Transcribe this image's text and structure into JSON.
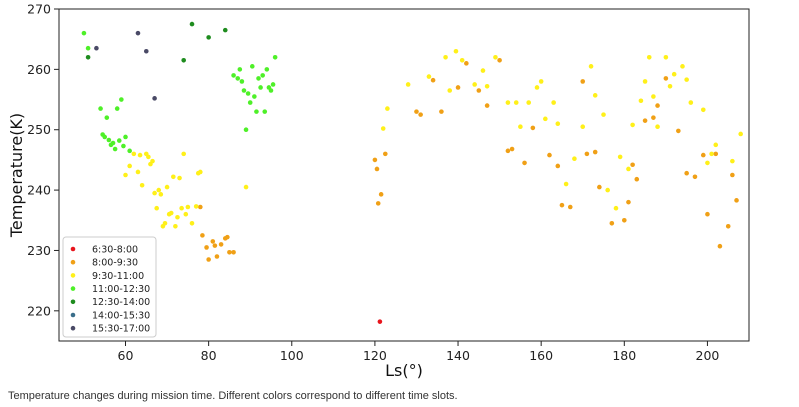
{
  "caption": "Temperature changes during mission time. Different colors correspond to different time slots.",
  "chart_data": {
    "type": "scatter",
    "title": "",
    "xlabel": "Ls(°)",
    "ylabel": "Temperature(K)",
    "xlim": [
      44,
      210
    ],
    "ylim": [
      215,
      270
    ],
    "xticks": [
      60,
      80,
      100,
      120,
      140,
      160,
      180,
      200
    ],
    "yticks": [
      220,
      230,
      240,
      250,
      260,
      270
    ],
    "grid": false,
    "legend_position": "lower-left",
    "series": [
      {
        "name": "6:30-8:00",
        "color": "#e8141c",
        "points": [
          [
            121.2,
            218.2
          ]
        ]
      },
      {
        "name": "8:00-9:30",
        "color": "#f0a016",
        "points": [
          [
            78,
            237.2
          ],
          [
            78.5,
            232.5
          ],
          [
            79.5,
            230.5
          ],
          [
            80,
            228.5
          ],
          [
            81,
            231.5
          ],
          [
            81.5,
            230.8
          ],
          [
            82,
            229
          ],
          [
            83,
            231
          ],
          [
            84,
            232
          ],
          [
            84.5,
            232.2
          ],
          [
            85,
            229.7
          ],
          [
            86,
            229.7
          ],
          [
            120,
            245
          ],
          [
            120.5,
            243.5
          ],
          [
            120.8,
            237.8
          ],
          [
            121.5,
            239.3
          ],
          [
            122.5,
            246
          ],
          [
            130,
            253
          ],
          [
            131,
            252.5
          ],
          [
            134,
            258.2
          ],
          [
            136,
            253
          ],
          [
            140,
            257
          ],
          [
            142,
            261
          ],
          [
            145,
            256.5
          ],
          [
            147,
            254
          ],
          [
            150,
            261.5
          ],
          [
            152,
            246.5
          ],
          [
            153,
            246.8
          ],
          [
            156,
            244.5
          ],
          [
            158,
            250.3
          ],
          [
            162,
            245.8
          ],
          [
            164,
            244
          ],
          [
            165,
            237.5
          ],
          [
            167,
            237.2
          ],
          [
            170,
            258
          ],
          [
            171,
            246
          ],
          [
            173,
            246.3
          ],
          [
            174,
            240.5
          ],
          [
            177,
            234.5
          ],
          [
            180,
            235
          ],
          [
            181,
            238
          ],
          [
            182,
            244.2
          ],
          [
            183,
            241.8
          ],
          [
            185,
            251.5
          ],
          [
            187,
            252
          ],
          [
            188,
            254
          ],
          [
            190,
            258.5
          ],
          [
            193,
            249.8
          ],
          [
            195,
            242.8
          ],
          [
            197,
            242.2
          ],
          [
            199,
            245.8
          ],
          [
            200,
            236
          ],
          [
            202,
            246
          ],
          [
            203,
            230.7
          ],
          [
            205,
            234
          ],
          [
            206,
            242.5
          ],
          [
            207,
            238.3
          ]
        ]
      },
      {
        "name": "9:30-11:00",
        "color": "#fff019",
        "points": [
          [
            60,
            242.5
          ],
          [
            61,
            244
          ],
          [
            62,
            246
          ],
          [
            63,
            243
          ],
          [
            63.5,
            245.8
          ],
          [
            64,
            240.8
          ],
          [
            65,
            246
          ],
          [
            65.5,
            245.5
          ],
          [
            66,
            244.3
          ],
          [
            66.5,
            244.8
          ],
          [
            67,
            239.5
          ],
          [
            67.5,
            237
          ],
          [
            68,
            240
          ],
          [
            68.5,
            239.3
          ],
          [
            69,
            234
          ],
          [
            69.5,
            234.5
          ],
          [
            70,
            240.5
          ],
          [
            70.5,
            236
          ],
          [
            71,
            236.2
          ],
          [
            71.5,
            242.2
          ],
          [
            72,
            234
          ],
          [
            72.5,
            235.5
          ],
          [
            73,
            242
          ],
          [
            73.5,
            237
          ],
          [
            74,
            246
          ],
          [
            74.5,
            236
          ],
          [
            75,
            237.2
          ],
          [
            76,
            234.5
          ],
          [
            77,
            237.3
          ],
          [
            77.5,
            242.8
          ],
          [
            78,
            243
          ],
          [
            89,
            240.5
          ],
          [
            122,
            250.2
          ],
          [
            123,
            253.5
          ],
          [
            128,
            257.5
          ],
          [
            133,
            258.8
          ],
          [
            137,
            262
          ],
          [
            138,
            256.5
          ],
          [
            139.5,
            263
          ],
          [
            141,
            261.5
          ],
          [
            144,
            257.5
          ],
          [
            146,
            259.8
          ],
          [
            147,
            257.2
          ],
          [
            149,
            262
          ],
          [
            152,
            254.5
          ],
          [
            154,
            254.5
          ],
          [
            155,
            250.5
          ],
          [
            157,
            254.5
          ],
          [
            159,
            257
          ],
          [
            160,
            258
          ],
          [
            161,
            251.8
          ],
          [
            163,
            254.5
          ],
          [
            164,
            251
          ],
          [
            166,
            241
          ],
          [
            168,
            245.2
          ],
          [
            170,
            250.5
          ],
          [
            172,
            260.5
          ],
          [
            173,
            255.7
          ],
          [
            175,
            252.5
          ],
          [
            176,
            240
          ],
          [
            178,
            237
          ],
          [
            179,
            245.5
          ],
          [
            181,
            243.5
          ],
          [
            182,
            250.8
          ],
          [
            184,
            254.8
          ],
          [
            185,
            258
          ],
          [
            186,
            262
          ],
          [
            187,
            255.5
          ],
          [
            188,
            250.5
          ],
          [
            190,
            262
          ],
          [
            191,
            257.2
          ],
          [
            192,
            259.2
          ],
          [
            194,
            260.5
          ],
          [
            195,
            258.3
          ],
          [
            196,
            254.5
          ],
          [
            199,
            253.3
          ],
          [
            200,
            244.5
          ],
          [
            201,
            246
          ],
          [
            202,
            247.5
          ],
          [
            206,
            244.8
          ],
          [
            208,
            249.3
          ]
        ]
      },
      {
        "name": "11:00-12:30",
        "color": "#4ef028",
        "points": [
          [
            50,
            266
          ],
          [
            51,
            263.5
          ],
          [
            54,
            253.5
          ],
          [
            54.5,
            249.2
          ],
          [
            55,
            248.8
          ],
          [
            55.5,
            252
          ],
          [
            56,
            248.3
          ],
          [
            56.5,
            247.5
          ],
          [
            57,
            247.8
          ],
          [
            57.5,
            246.8
          ],
          [
            58,
            253.5
          ],
          [
            58.5,
            248.2
          ],
          [
            59,
            255
          ],
          [
            59.5,
            247.3
          ],
          [
            60,
            248.8
          ],
          [
            61,
            246.5
          ],
          [
            86,
            259
          ],
          [
            87,
            258.5
          ],
          [
            87.5,
            260
          ],
          [
            88,
            258
          ],
          [
            88.5,
            256.5
          ],
          [
            89,
            250
          ],
          [
            89.5,
            256
          ],
          [
            90,
            254.5
          ],
          [
            90.5,
            260.5
          ],
          [
            91,
            255.5
          ],
          [
            91.5,
            253
          ],
          [
            92,
            258.5
          ],
          [
            92.5,
            257
          ],
          [
            93,
            259
          ],
          [
            93.5,
            253
          ],
          [
            94,
            260
          ],
          [
            94.5,
            257
          ],
          [
            95,
            256.5
          ],
          [
            95.5,
            257.5
          ],
          [
            96,
            262
          ]
        ]
      },
      {
        "name": "12:30-14:00",
        "color": "#1e8c1e",
        "points": [
          [
            51,
            262
          ],
          [
            74,
            261.5
          ],
          [
            76,
            267.5
          ],
          [
            80,
            265.3
          ],
          [
            84,
            266.5
          ]
        ]
      },
      {
        "name": "14:00-15:30",
        "color": "#3a6e8a",
        "points": []
      },
      {
        "name": "15:30-17:00",
        "color": "#4a4a66",
        "points": [
          [
            53,
            263.5
          ],
          [
            63,
            266
          ],
          [
            65,
            263
          ],
          [
            67,
            255.2
          ]
        ]
      }
    ]
  }
}
